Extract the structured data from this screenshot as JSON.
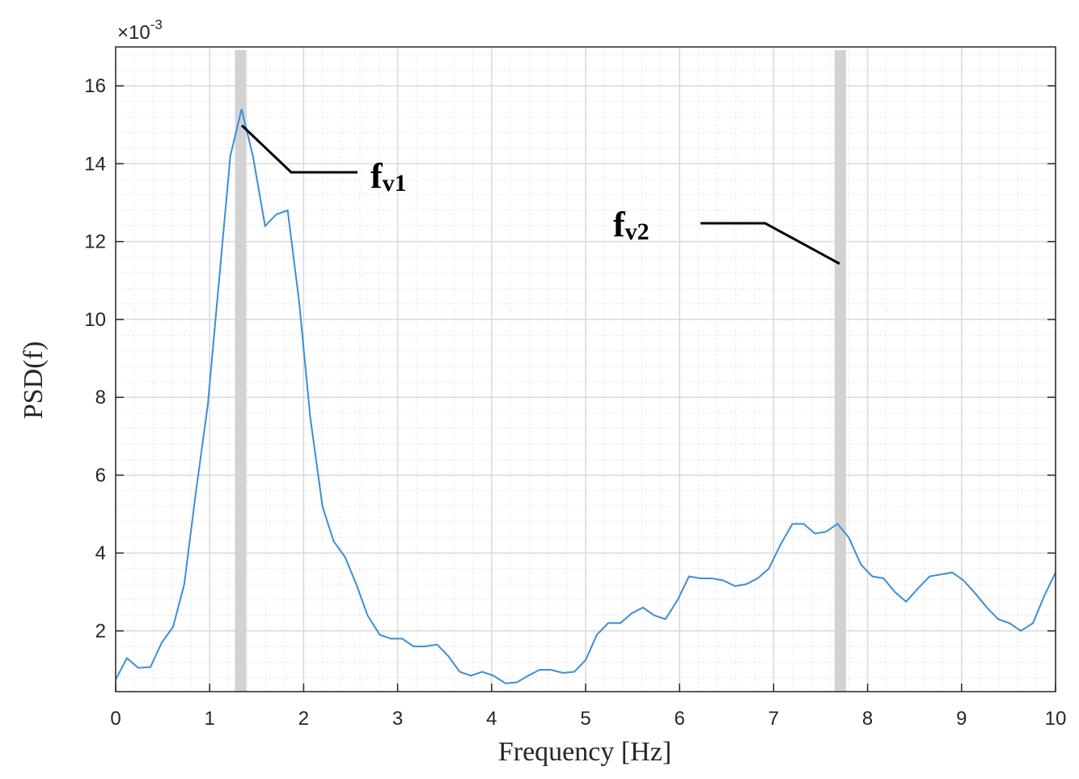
{
  "chart_data": {
    "type": "line",
    "x_label": "Frequency [Hz]",
    "y_label": "PSD(f)",
    "y_multiplier": {
      "base": "×10",
      "exponent": "-3"
    },
    "x": [
      0,
      0.12,
      0.24,
      0.37,
      0.49,
      0.61,
      0.73,
      0.85,
      0.98,
      1.1,
      1.22,
      1.34,
      1.46,
      1.59,
      1.71,
      1.83,
      1.95,
      2.07,
      2.2,
      2.32,
      2.44,
      2.56,
      2.68,
      2.81,
      2.93,
      3.05,
      3.17,
      3.29,
      3.42,
      3.54,
      3.66,
      3.78,
      3.9,
      4.02,
      4.15,
      4.27,
      4.39,
      4.51,
      4.63,
      4.76,
      4.88,
      5.0,
      5.12,
      5.24,
      5.37,
      5.49,
      5.61,
      5.73,
      5.85,
      5.98,
      6.1,
      6.22,
      6.34,
      6.46,
      6.59,
      6.71,
      6.83,
      6.95,
      7.07,
      7.2,
      7.32,
      7.44,
      7.56,
      7.68,
      7.8,
      7.93,
      8.05,
      8.17,
      8.29,
      8.41,
      8.54,
      8.66,
      8.78,
      8.9,
      9.02,
      9.15,
      9.27,
      9.39,
      9.51,
      9.63,
      9.76,
      9.88,
      10
    ],
    "series": [
      {
        "color": "#3a8fd6",
        "values": [
          0.75,
          1.3,
          1.05,
          1.07,
          1.7,
          2.1,
          3.2,
          5.5,
          7.8,
          11,
          14.2,
          15.4,
          14.2,
          12.4,
          12.7,
          12.8,
          10.5,
          7.5,
          5.2,
          4.3,
          3.9,
          3.2,
          2.4,
          1.9,
          1.8,
          1.8,
          1.6,
          1.6,
          1.65,
          1.35,
          0.95,
          0.85,
          0.95,
          0.85,
          0.65,
          0.68,
          0.85,
          1.0,
          1.0,
          0.92,
          0.95,
          1.25,
          1.9,
          2.2,
          2.2,
          2.45,
          2.6,
          2.4,
          2.3,
          2.8,
          3.4,
          3.35,
          3.35,
          3.3,
          3.15,
          3.2,
          3.35,
          3.6,
          4.2,
          4.75,
          4.75,
          4.5,
          4.55,
          4.75,
          4.4,
          3.7,
          3.4,
          3.35,
          3.0,
          2.75,
          3.1,
          3.4,
          3.45,
          3.5,
          3.3,
          2.95,
          2.6,
          2.3,
          2.2,
          2.0,
          2.2,
          2.9,
          3.5
        ]
      }
    ],
    "xlim": [
      0,
      10
    ],
    "xticks": [
      0,
      1,
      2,
      3,
      4,
      5,
      6,
      7,
      8,
      9,
      10
    ],
    "ylim": [
      0.44,
      17
    ],
    "yticks": [
      2,
      4,
      6,
      8,
      10,
      12,
      14,
      16
    ],
    "grid": true,
    "minor_grid": true,
    "highlight_x": [
      1.33,
      7.71
    ],
    "highlight_color": "#d2d2d2",
    "annotations": [
      {
        "text": "f",
        "sub": "v1"
      },
      {
        "text": "f",
        "sub": "v2"
      }
    ]
  }
}
